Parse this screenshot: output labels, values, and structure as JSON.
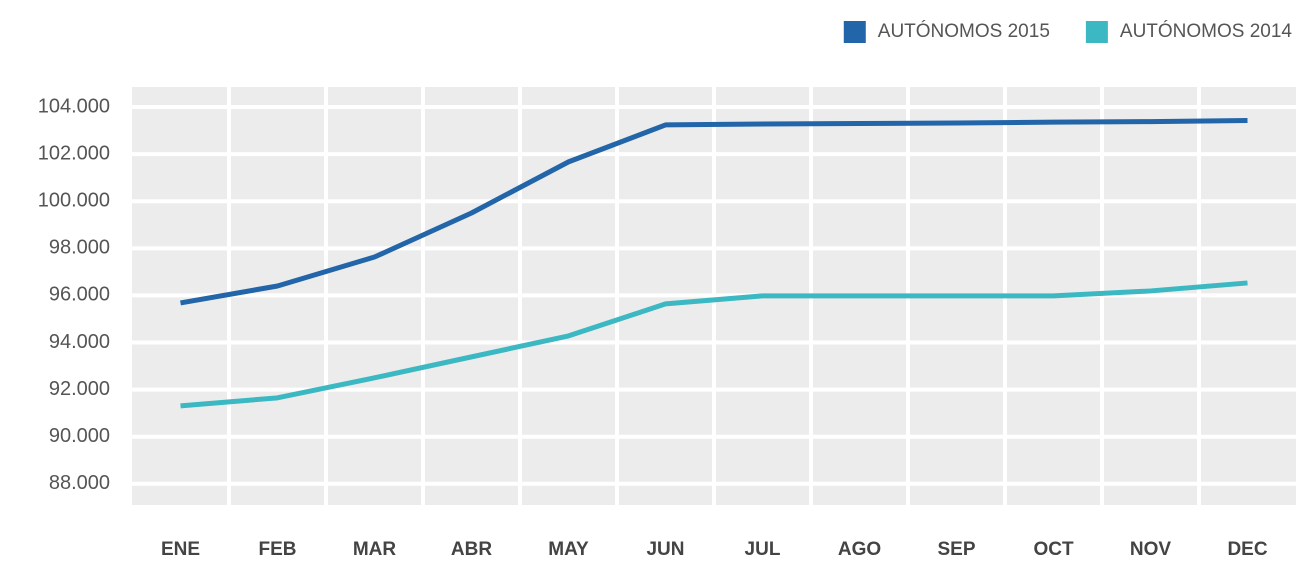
{
  "chart_data": {
    "type": "line",
    "categories": [
      "ENE",
      "FEB",
      "MAR",
      "ABR",
      "MAY",
      "JUN",
      "JUL",
      "AGO",
      "SEP",
      "OCT",
      "NOV",
      "DEC"
    ],
    "series": [
      {
        "name": "AUTÓNOMOS 2015",
        "color": "#2265a8",
        "values": [
          95680,
          96400,
          97630,
          99500,
          101670,
          103240,
          103280,
          103300,
          103320,
          103360,
          103380,
          103430
        ]
      },
      {
        "name": "AUTÓNOMOS 2014",
        "color": "#3cb8c3",
        "values": [
          91310,
          91650,
          92500,
          93390,
          94280,
          95640,
          95980,
          95980,
          95980,
          95980,
          96190,
          96530
        ]
      }
    ],
    "ylim": [
      87100,
      104850
    ],
    "yticks": [
      {
        "value": 88000,
        "label": "88.000"
      },
      {
        "value": 90000,
        "label": "90.000"
      },
      {
        "value": 92000,
        "label": "92.000"
      },
      {
        "value": 94000,
        "label": "94.000"
      },
      {
        "value": 96000,
        "label": "96.000"
      },
      {
        "value": 98000,
        "label": "98.000"
      },
      {
        "value": 100000,
        "label": "100.000"
      },
      {
        "value": 102000,
        "label": "102.000"
      },
      {
        "value": 104000,
        "label": "104.000"
      }
    ],
    "grid": true,
    "legend": "top-right"
  }
}
